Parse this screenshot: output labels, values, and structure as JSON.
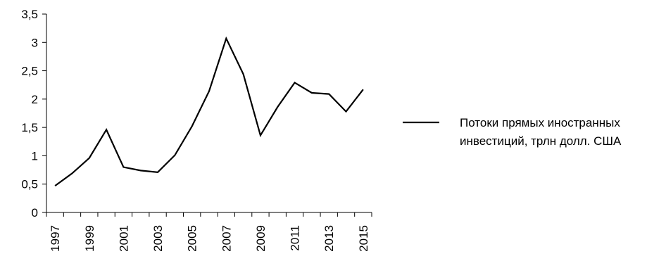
{
  "chart_data": {
    "type": "line",
    "x": [
      "1997",
      "1998",
      "1999",
      "2000",
      "2001",
      "2002",
      "2003",
      "2004",
      "2005",
      "2006",
      "2007",
      "2008",
      "2009",
      "2010",
      "2011",
      "2012",
      "2013",
      "2014",
      "2015"
    ],
    "x_tick_labels": [
      "1997",
      "1999",
      "2001",
      "2003",
      "2005",
      "2007",
      "2009",
      "2011",
      "2013",
      "2015"
    ],
    "y_tick_labels": [
      "0",
      "0,5",
      "1",
      "1,5",
      "2",
      "2,5",
      "3",
      "3,5"
    ],
    "ylim": [
      0,
      3.5
    ],
    "series": [
      {
        "name": "Потоки прямых иностранных инвестиций, трлн долл. США",
        "name_lines": [
          "Потоки прямых иностранных",
          "инвестиций, трлн долл. США"
        ],
        "color": "#000000",
        "values": [
          0.47,
          0.69,
          0.96,
          1.46,
          0.8,
          0.74,
          0.71,
          1.01,
          1.52,
          2.14,
          3.07,
          2.44,
          1.36,
          1.86,
          2.29,
          2.11,
          2.09,
          1.78,
          2.17
        ]
      }
    ],
    "grid": false,
    "legend_position": "right"
  }
}
